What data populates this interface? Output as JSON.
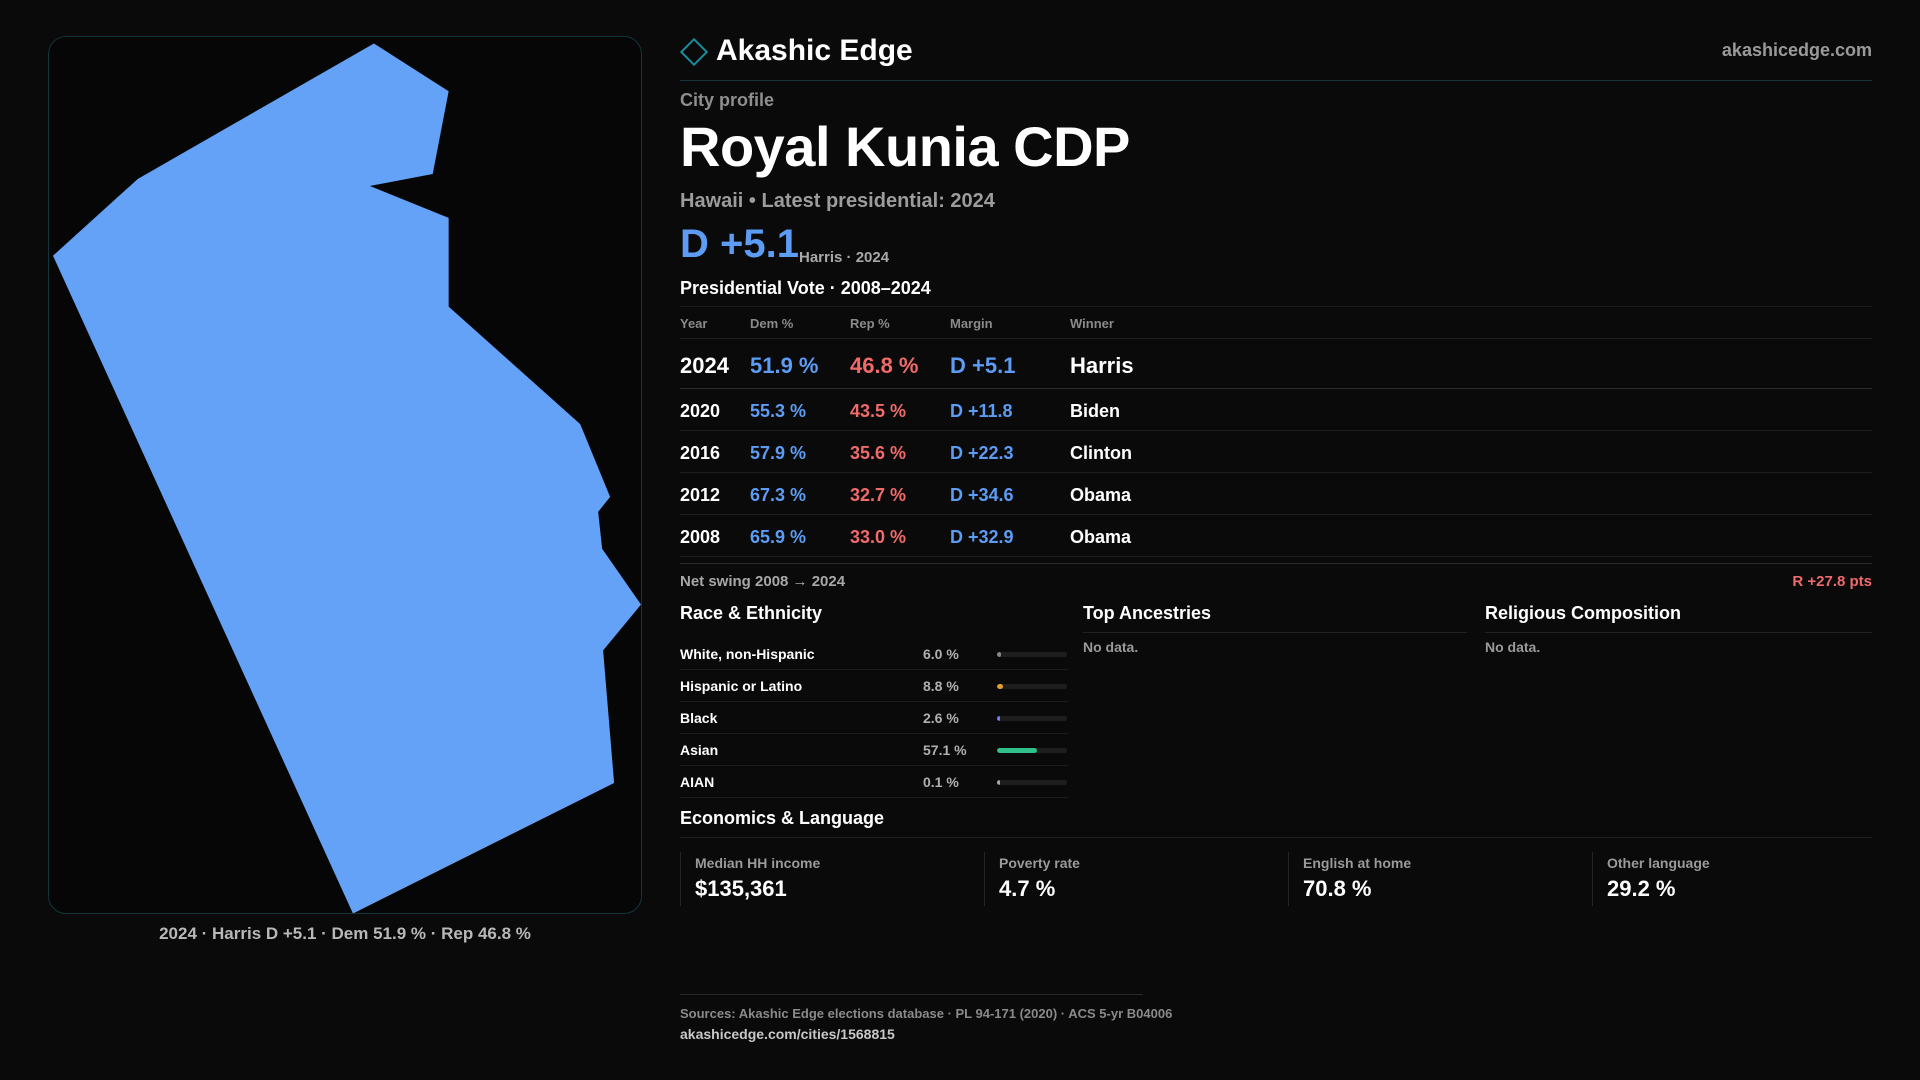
{
  "brand": {
    "name": "Akashic Edge",
    "site": "akashicedge.com"
  },
  "map": {
    "fill_color": "#63a2f7",
    "caption": "2024 · Harris D +5.1 · Dem 51.9 % · Rep 46.8 %"
  },
  "profile": {
    "kicker": "City profile",
    "city": "Royal Kunia CDP",
    "subline": "Hawaii • Latest presidential: 2024",
    "margin": "D +5.1",
    "margin_note": "Harris · 2024"
  },
  "vote": {
    "title": "Presidential Vote · 2008–2024",
    "headers": {
      "year": "Year",
      "dem": "Dem %",
      "rep": "Rep %",
      "margin": "Margin",
      "winner": "Winner"
    },
    "rows": [
      {
        "year": "2024",
        "dem": "51.9 %",
        "rep": "46.8 %",
        "margin": "D +5.1",
        "winner": "Harris"
      },
      {
        "year": "2020",
        "dem": "55.3 %",
        "rep": "43.5 %",
        "margin": "D +11.8",
        "winner": "Biden"
      },
      {
        "year": "2016",
        "dem": "57.9 %",
        "rep": "35.6 %",
        "margin": "D +22.3",
        "winner": "Clinton"
      },
      {
        "year": "2012",
        "dem": "67.3 %",
        "rep": "32.7 %",
        "margin": "D +34.6",
        "winner": "Obama"
      },
      {
        "year": "2008",
        "dem": "65.9 %",
        "rep": "33.0 %",
        "margin": "D +32.9",
        "winner": "Obama"
      }
    ],
    "swing_label": "Net swing 2008 → 2024",
    "swing_value": "R +27.8 pts"
  },
  "race": {
    "title": "Race & Ethnicity",
    "rows": [
      {
        "name": "White, non-Hispanic",
        "pct": "6.0 %",
        "fraction": 0.06,
        "color": "#8a8a8a"
      },
      {
        "name": "Hispanic or Latino",
        "pct": "8.8 %",
        "fraction": 0.088,
        "color": "#e0a030"
      },
      {
        "name": "Black",
        "pct": "2.6 %",
        "fraction": 0.026,
        "color": "#7a7af0"
      },
      {
        "name": "Asian",
        "pct": "57.1 %",
        "fraction": 0.571,
        "color": "#2fc08c"
      },
      {
        "name": "AIAN",
        "pct": "0.1 %",
        "fraction": 0.001,
        "color": "#a8a8a8"
      }
    ]
  },
  "ancestries": {
    "title": "Top Ancestries",
    "empty": "No data."
  },
  "religion": {
    "title": "Religious Composition",
    "empty": "No data."
  },
  "economics": {
    "title": "Economics & Language",
    "cards": [
      {
        "label": "Median HH income",
        "value": "$135,361"
      },
      {
        "label": "Poverty rate",
        "value": "4.7 %"
      },
      {
        "label": "English at home",
        "value": "70.8 %"
      },
      {
        "label": "Other language",
        "value": "29.2 %"
      }
    ]
  },
  "sources": {
    "text": "Sources: Akashic Edge elections database · PL 94-171 (2020) · ACS 5-yr B04006",
    "url": "akashicedge.com/cities/1568815"
  }
}
